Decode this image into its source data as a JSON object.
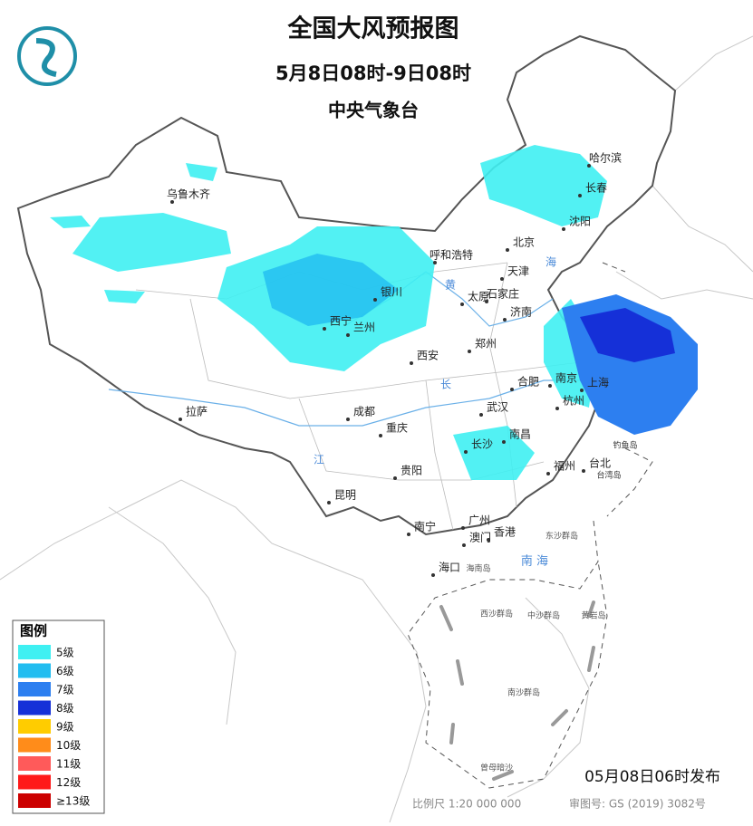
{
  "header": {
    "title": "全国大风预报图",
    "subtitle": "5月8日08时-9日08时",
    "issuer": "中央气象台"
  },
  "legend": {
    "title": "图例",
    "items": [
      {
        "label": "5级",
        "color": "#3ff0f2"
      },
      {
        "label": "6级",
        "color": "#22bdf0"
      },
      {
        "label": "7级",
        "color": "#2d7ff0"
      },
      {
        "label": "8级",
        "color": "#1530d8"
      },
      {
        "label": "9级",
        "color": "#ffcc00"
      },
      {
        "label": "10级",
        "color": "#ff8c1a"
      },
      {
        "label": "11级",
        "color": "#ff5a5a"
      },
      {
        "label": "12级",
        "color": "#ff1a1a"
      },
      {
        "label": "≥13级",
        "color": "#cc0000"
      }
    ]
  },
  "cities": [
    {
      "name": "乌鲁木齐"
    },
    {
      "name": "哈尔滨"
    },
    {
      "name": "长春"
    },
    {
      "name": "沈阳"
    },
    {
      "name": "北京"
    },
    {
      "name": "呼和浩特"
    },
    {
      "name": "天津"
    },
    {
      "name": "银川"
    },
    {
      "name": "太原"
    },
    {
      "name": "石家庄"
    },
    {
      "name": "济南"
    },
    {
      "name": "西宁"
    },
    {
      "name": "兰州"
    },
    {
      "name": "郑州"
    },
    {
      "name": "西安"
    },
    {
      "name": "南京"
    },
    {
      "name": "合肥"
    },
    {
      "name": "上海"
    },
    {
      "name": "杭州"
    },
    {
      "name": "拉萨"
    },
    {
      "name": "成都"
    },
    {
      "name": "武汉"
    },
    {
      "name": "重庆"
    },
    {
      "name": "长沙"
    },
    {
      "name": "南昌"
    },
    {
      "name": "贵阳"
    },
    {
      "name": "福州"
    },
    {
      "name": "台北"
    },
    {
      "name": "昆明"
    },
    {
      "name": "南宁"
    },
    {
      "name": "广州"
    },
    {
      "name": "香港"
    },
    {
      "name": "澳门"
    },
    {
      "name": "海口"
    }
  ],
  "places": [
    {
      "name": "钓鱼岛"
    },
    {
      "name": "台湾岛"
    },
    {
      "name": "东沙群岛"
    },
    {
      "name": "西沙群岛"
    },
    {
      "name": "中沙群岛"
    },
    {
      "name": "黄岩岛"
    },
    {
      "name": "南沙群岛"
    },
    {
      "name": "曾母暗沙"
    },
    {
      "name": "海南岛"
    },
    {
      "name": "南 海"
    },
    {
      "name": "黄"
    },
    {
      "name": "海"
    },
    {
      "name": "长"
    },
    {
      "name": "江"
    }
  ],
  "footer": {
    "issued": "05月08日06时发布",
    "scale": "比例尺 1:20 000 000",
    "review": "审图号: GS (2019) 3082号"
  }
}
